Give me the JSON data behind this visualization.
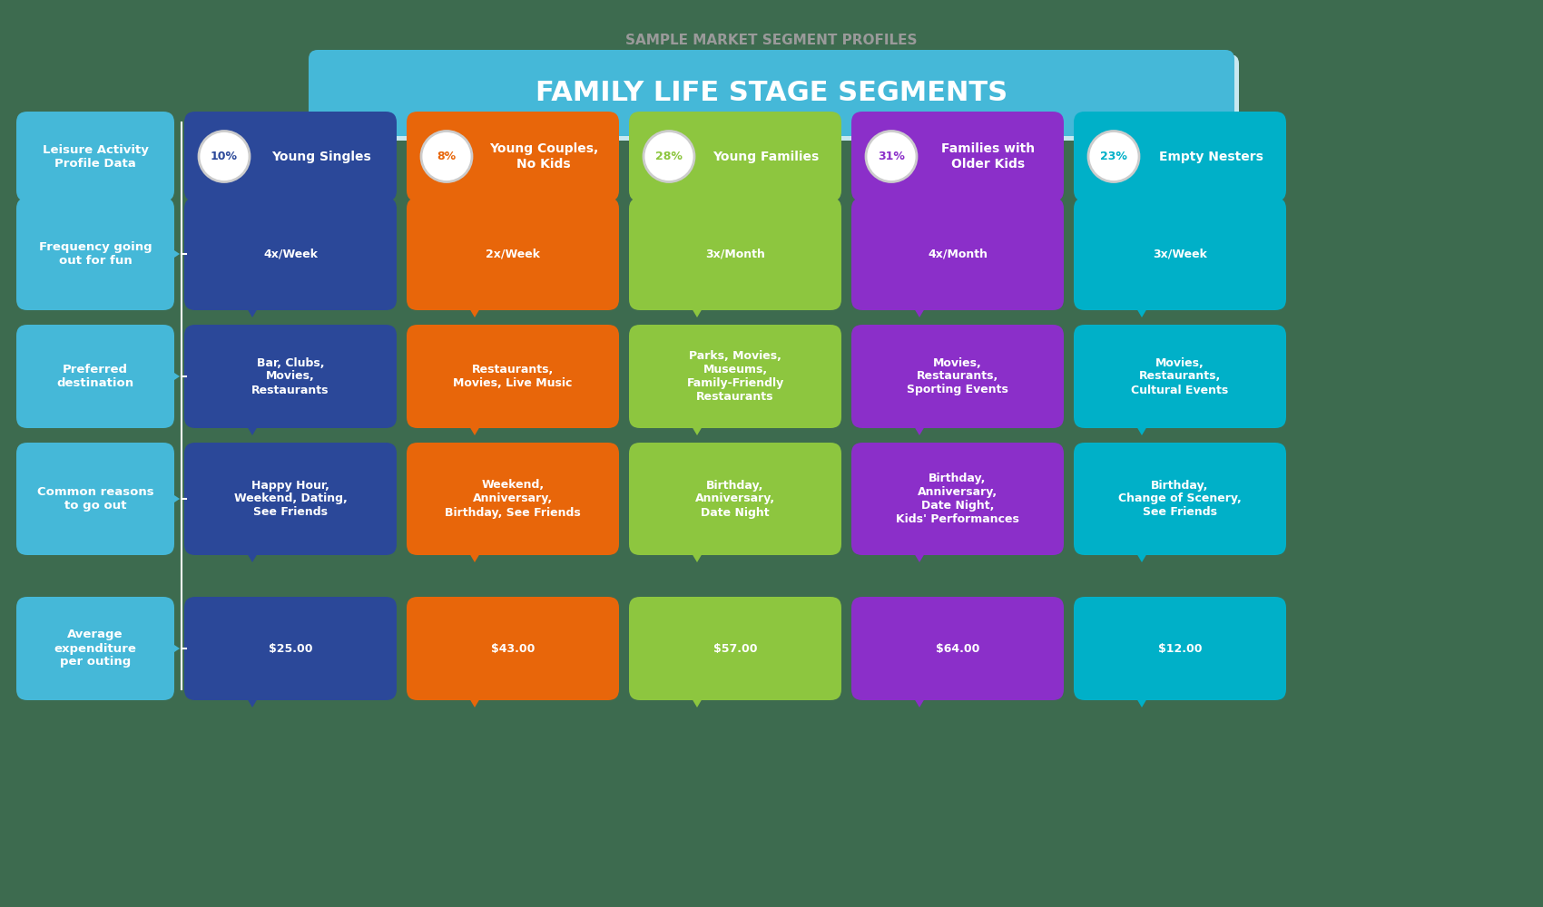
{
  "background_color": "#3d6b4f",
  "title_top": "SAMPLE MARKET SEGMENT PROFILES",
  "title_top_color": "#7a7a7a",
  "title_main": "FAMILY LIFE STAGE SEGMENTS",
  "title_main_color": "#ffffff",
  "title_main_bg": "#45b8d8",
  "left_col_color": "#45b8d8",
  "left_col_labels": [
    "Leisure Activity\nProfile Data",
    "Frequency going\nout for fun",
    "Preferred\ndestination",
    "Common reasons\nto go out",
    "Average\nexpenditure\nper outing"
  ],
  "segments": [
    {
      "name": "Young Singles",
      "pct": "10%",
      "color": "#2b4899",
      "circle_color": "#e8e8e8",
      "pct_text_color": "#e8660a",
      "frequency": "4x/Week",
      "destination": "Bar, Clubs,\nMovies,\nRestaurants",
      "reasons": "Happy Hour,\nWeekend, Dating,\nSee Friends",
      "expenditure": "$25.00"
    },
    {
      "name": "Young Couples,\nNo Kids",
      "pct": "8%",
      "color": "#e8660a",
      "circle_color": "#e8e8e8",
      "pct_text_color": "#e8660a",
      "frequency": "2x/Week",
      "destination": "Restaurants,\nMovies, Live Music",
      "reasons": "Weekend,\nAnniversary,\nBirthday, See Friends",
      "expenditure": "$43.00"
    },
    {
      "name": "Young Families",
      "pct": "28%",
      "color": "#8dc63f",
      "circle_color": "#e8e8e8",
      "pct_text_color": "#8dc63f",
      "frequency": "3x/Month",
      "destination": "Parks, Movies,\nMuseums,\nFamily-Friendly\nRestaurants",
      "reasons": "Birthday,\nAnniversary,\nDate Night",
      "expenditure": "$57.00"
    },
    {
      "name": "Families with\nOlder Kids",
      "pct": "31%",
      "color": "#8b2fc9",
      "circle_color": "#e8e8e8",
      "pct_text_color": "#8b2fc9",
      "frequency": "4x/Month",
      "destination": "Movies,\nRestaurants,\nSporting Events",
      "reasons": "Birthday,\nAnniversary,\nDate Night,\nKids' Performances",
      "expenditure": "$64.00"
    },
    {
      "name": "Empty Nesters",
      "pct": "23%",
      "color": "#00b0c8",
      "circle_color": "#e8e8e8",
      "pct_text_color": "#00b0c8",
      "frequency": "3x/Week",
      "destination": "Movies,\nRestaurants,\nCultural Events",
      "reasons": "Birthday,\nChange of Scenery,\nSee Friends",
      "expenditure": "$12.00"
    }
  ]
}
